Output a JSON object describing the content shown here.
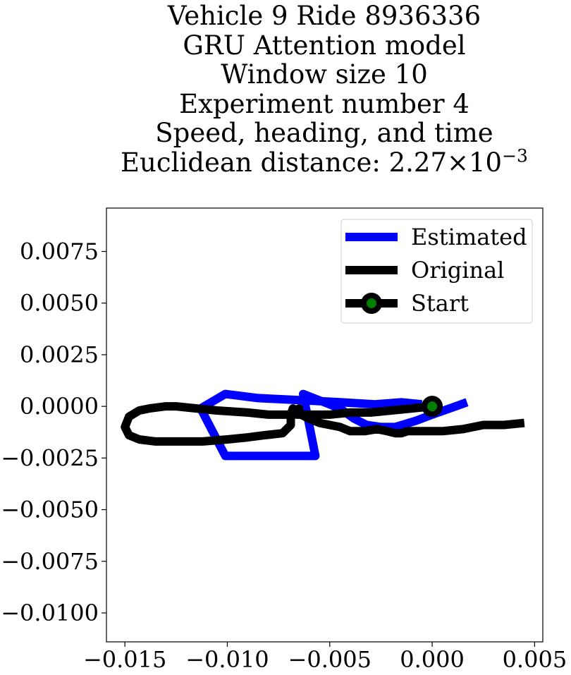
{
  "chart_data": {
    "type": "line",
    "title_lines": [
      "Vehicle 9 Ride 8936336",
      "GRU Attention model",
      "Window size 10",
      "Experiment number 4",
      "Speed, heading, and time"
    ],
    "title_last_prefix": "Euclidean distance: 2.27",
    "title_last_mid": "×10",
    "title_last_exp": "−3",
    "xlim": [
      -0.0159,
      0.0054
    ],
    "ylim": [
      -0.0114,
      0.0096
    ],
    "x_ticks": [
      -0.015,
      -0.01,
      -0.005,
      0.0,
      0.005
    ],
    "x_tick_labels": [
      "−0.015",
      "−0.010",
      "−0.005",
      "0.000",
      "0.005"
    ],
    "y_ticks": [
      0.0075,
      0.005,
      0.0025,
      0.0,
      -0.0025,
      -0.005,
      -0.0075,
      -0.01
    ],
    "y_tick_labels": [
      "0.0075",
      "0.0050",
      "0.0025",
      "0.0000",
      "−0.0025",
      "−0.0050",
      "−0.0075",
      "−0.0100"
    ],
    "legend_position": "upper right",
    "series": [
      {
        "name": "Estimated",
        "color": "#0000ff",
        "x": [
          0.0017,
          0.0,
          -0.0008,
          -0.0018,
          -0.0025,
          -0.0032,
          -0.0038,
          -0.0045,
          -0.0063,
          -0.0057,
          -0.0101,
          -0.0113,
          -0.0101,
          -0.0085,
          -0.0064,
          -0.0045,
          -0.0028,
          -0.0015,
          -0.0005
        ],
        "y": [
          0.0002,
          -0.0004,
          -0.0007,
          -0.001,
          -0.001,
          -0.0009,
          -0.0006,
          -0.0001,
          0.0006,
          -0.0024,
          -0.0024,
          -0.0001,
          0.0006,
          0.0004,
          0.0003,
          0.0002,
          0.0001,
          0.0002,
          0.0001
        ]
      },
      {
        "name": "Original",
        "color": "#000000",
        "x": [
          0.0,
          -0.001,
          -0.002,
          -0.003,
          -0.004,
          -0.005,
          -0.006,
          -0.0066,
          -0.0065,
          -0.007,
          -0.008,
          -0.009,
          -0.0105,
          -0.0115,
          -0.0125,
          -0.013,
          -0.0138,
          -0.0143,
          -0.0148,
          -0.015,
          -0.0148,
          -0.0143,
          -0.0135,
          -0.0125,
          -0.0112,
          -0.01,
          -0.009,
          -0.0082,
          -0.0073,
          -0.0069,
          -0.0069,
          -0.0068,
          -0.0064,
          -0.006,
          -0.0055,
          -0.005,
          -0.0045,
          -0.004,
          -0.0033,
          -0.0027,
          -0.0022,
          -0.0018,
          -0.0015,
          -0.0012,
          -0.0005,
          0.0005,
          0.0015,
          0.0025,
          0.0035,
          0.0045
        ],
        "y": [
          0.0,
          -0.0001,
          -0.0002,
          -0.0003,
          -0.0003,
          -0.0004,
          -0.0004,
          -0.0004,
          -0.0001,
          -0.0004,
          -0.0004,
          -0.0003,
          -0.0002,
          -0.0001,
          0.0,
          0.0,
          -0.0001,
          -0.0002,
          -0.0005,
          -0.001,
          -0.0014,
          -0.0016,
          -0.0017,
          -0.0017,
          -0.0017,
          -0.0016,
          -0.0015,
          -0.0014,
          -0.0013,
          -0.0009,
          -0.0004,
          -0.0001,
          -0.0004,
          -0.0006,
          -0.0008,
          -0.0009,
          -0.001,
          -0.0012,
          -0.0012,
          -0.0011,
          -0.0012,
          -0.0013,
          -0.0013,
          -0.0012,
          -0.0012,
          -0.0012,
          -0.0011,
          -0.0009,
          -0.0009,
          -0.0008
        ]
      }
    ],
    "start_point": {
      "name": "Start",
      "x": 0.0,
      "y": 0.0,
      "face_color": "#008000",
      "edge_color": "#000000"
    }
  }
}
